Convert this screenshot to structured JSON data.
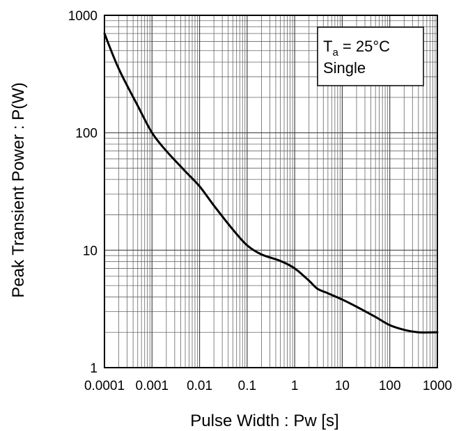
{
  "chart_data": {
    "type": "line",
    "title": "",
    "xlabel": "Pulse Width : Pw [s]",
    "ylabel": "Peak Transient Power : P(W)",
    "xscale": "log",
    "yscale": "log",
    "xlim": [
      0.0001,
      1000
    ],
    "ylim": [
      1,
      1000
    ],
    "grid": true,
    "x_tick_labels": [
      "0.0001",
      "0.001",
      "0.01",
      "0.1",
      "1",
      "10",
      "100",
      "1000"
    ],
    "y_tick_labels": [
      "1",
      "10",
      "100",
      "1000"
    ],
    "annotation": {
      "line1_main": "T",
      "line1_sub": "a",
      "line1_rest": " = 25°C",
      "line2": "Single"
    },
    "series": [
      {
        "x": [
          0.0001,
          0.0002,
          0.0005,
          0.001,
          0.002,
          0.005,
          0.01,
          0.02,
          0.05,
          0.1,
          0.2,
          0.5,
          1,
          2,
          3,
          5,
          10,
          20,
          50,
          100,
          200,
          400,
          1000
        ],
        "y": [
          700,
          350,
          170,
          100,
          70,
          47,
          35,
          24,
          15,
          11,
          9.2,
          8.1,
          7.0,
          5.5,
          4.7,
          4.3,
          3.8,
          3.3,
          2.7,
          2.3,
          2.1,
          2.0,
          2.0
        ]
      }
    ]
  }
}
